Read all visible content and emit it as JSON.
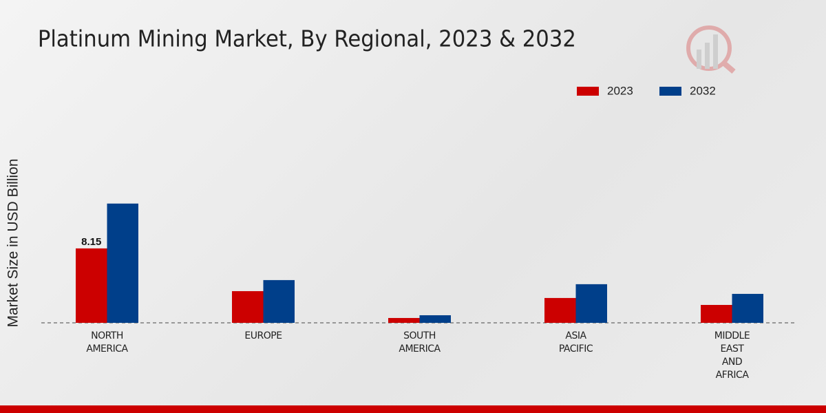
{
  "chart_data": {
    "type": "bar",
    "title": "Platinum Mining Market, By Regional, 2023 & 2032",
    "y_label": "Market Size in USD Billion",
    "categories": [
      "NORTH AMERICA",
      "EUROPE",
      "SOUTH AMERICA",
      "ASIA PACIFIC",
      "MIDDLE EAST AND AFRICA"
    ],
    "series": [
      {
        "name": "2023",
        "color": "#cc0000",
        "values": [
          8.15,
          3.47,
          0.53,
          2.72,
          1.96
        ],
        "value_labels": [
          "8.15",
          null,
          null,
          null,
          null
        ]
      },
      {
        "name": "2032",
        "color": "#003f8a",
        "values": [
          13.06,
          4.68,
          0.83,
          4.23,
          3.17
        ]
      }
    ],
    "ylim": [
      0,
      15
    ],
    "legend": "top-right",
    "grid": false
  }
}
